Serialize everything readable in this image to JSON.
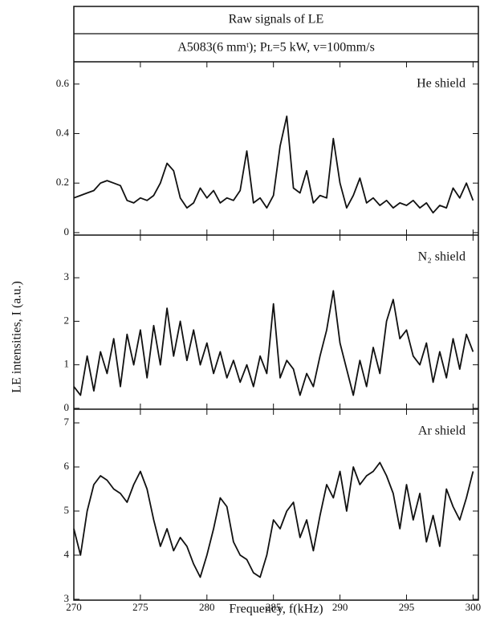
{
  "chart_data": [
    {
      "type": "line",
      "title": "Raw signals of LE",
      "subtitle": "A5083(6 mmᵗ); Pʟ=5 kW,  v=100mm/s",
      "annotation": "He shield",
      "x": [
        270,
        270.5,
        271,
        271.5,
        272,
        272.5,
        273,
        273.5,
        274,
        274.5,
        275,
        275.5,
        276,
        276.5,
        277,
        277.5,
        278,
        278.5,
        279,
        279.5,
        280,
        280.5,
        281,
        281.5,
        282,
        282.5,
        283,
        283.5,
        284,
        284.5,
        285,
        285.5,
        286,
        286.5,
        287,
        287.5,
        288,
        288.5,
        289,
        289.5,
        290,
        290.5,
        291,
        291.5,
        292,
        292.5,
        293,
        293.5,
        294,
        294.5,
        295,
        295.5,
        296,
        296.5,
        297,
        297.5,
        298,
        298.5,
        299,
        299.5,
        300
      ],
      "series": [
        {
          "color": "#111111",
          "values": [
            0.14,
            0.15,
            0.16,
            0.17,
            0.2,
            0.21,
            0.2,
            0.19,
            0.13,
            0.12,
            0.14,
            0.13,
            0.15,
            0.2,
            0.28,
            0.25,
            0.14,
            0.1,
            0.12,
            0.18,
            0.14,
            0.17,
            0.12,
            0.14,
            0.13,
            0.17,
            0.33,
            0.12,
            0.14,
            0.1,
            0.15,
            0.35,
            0.47,
            0.18,
            0.16,
            0.25,
            0.12,
            0.15,
            0.14,
            0.38,
            0.2,
            0.1,
            0.15,
            0.22,
            0.12,
            0.14,
            0.11,
            0.13,
            0.1,
            0.12,
            0.11,
            0.13,
            0.1,
            0.12,
            0.08,
            0.11,
            0.1,
            0.18,
            0.14,
            0.2,
            0.13
          ]
        }
      ],
      "xlim": [
        270,
        300.4
      ],
      "xticks": [
        270,
        275,
        280,
        285,
        290,
        295,
        300
      ],
      "ylim": [
        -0.01,
        0.69
      ],
      "yticks": [
        0,
        0.2,
        0.4,
        0.6
      ]
    },
    {
      "type": "line",
      "annotation": "N₂ shield",
      "y_label": "LE intensities, I (a.u.)",
      "x": [
        270,
        270.5,
        271,
        271.5,
        272,
        272.5,
        273,
        273.5,
        274,
        274.5,
        275,
        275.5,
        276,
        276.5,
        277,
        277.5,
        278,
        278.5,
        279,
        279.5,
        280,
        280.5,
        281,
        281.5,
        282,
        282.5,
        283,
        283.5,
        284,
        284.5,
        285,
        285.5,
        286,
        286.5,
        287,
        287.5,
        288,
        288.5,
        289,
        289.5,
        290,
        290.5,
        291,
        291.5,
        292,
        292.5,
        293,
        293.5,
        294,
        294.5,
        295,
        295.5,
        296,
        296.5,
        297,
        297.5,
        298,
        298.5,
        299,
        299.5,
        300
      ],
      "series": [
        {
          "color": "#111111",
          "values": [
            0.5,
            0.3,
            1.2,
            0.4,
            1.3,
            0.8,
            1.6,
            0.5,
            1.7,
            1.0,
            1.8,
            0.7,
            1.9,
            1.0,
            2.3,
            1.2,
            2.0,
            1.1,
            1.8,
            1.0,
            1.5,
            0.8,
            1.3,
            0.7,
            1.1,
            0.6,
            1.0,
            0.5,
            1.2,
            0.8,
            2.4,
            0.7,
            1.1,
            0.9,
            0.3,
            0.8,
            0.5,
            1.2,
            1.8,
            2.7,
            1.5,
            0.9,
            0.3,
            1.1,
            0.5,
            1.4,
            0.8,
            2.0,
            2.5,
            1.6,
            1.8,
            1.2,
            1.0,
            1.5,
            0.6,
            1.3,
            0.7,
            1.6,
            0.9,
            1.7,
            1.3
          ]
        }
      ],
      "xlim": [
        270,
        300.4
      ],
      "xticks": [
        270,
        275,
        280,
        285,
        290,
        295,
        300
      ],
      "ylim": [
        -0.02,
        3.98
      ],
      "yticks": [
        0,
        1,
        2,
        3
      ]
    },
    {
      "type": "line",
      "annotation": "Ar shield",
      "x_label": "Frequency, f(kHz)",
      "x": [
        270,
        270.5,
        271,
        271.5,
        272,
        272.5,
        273,
        273.5,
        274,
        274.5,
        275,
        275.5,
        276,
        276.5,
        277,
        277.5,
        278,
        278.5,
        279,
        279.5,
        280,
        280.5,
        281,
        281.5,
        282,
        282.5,
        283,
        283.5,
        284,
        284.5,
        285,
        285.5,
        286,
        286.5,
        287,
        287.5,
        288,
        288.5,
        289,
        289.5,
        290,
        290.5,
        291,
        291.5,
        292,
        292.5,
        293,
        293.5,
        294,
        294.5,
        295,
        295.5,
        296,
        296.5,
        297,
        297.5,
        298,
        298.5,
        299,
        299.5,
        300
      ],
      "series": [
        {
          "color": "#111111",
          "values": [
            4.6,
            4.0,
            5.0,
            5.6,
            5.8,
            5.7,
            5.5,
            5.4,
            5.2,
            5.6,
            5.9,
            5.5,
            4.8,
            4.2,
            4.6,
            4.1,
            4.4,
            4.2,
            3.8,
            3.5,
            4.0,
            4.6,
            5.3,
            5.1,
            4.3,
            4.0,
            3.9,
            3.6,
            3.5,
            4.0,
            4.8,
            4.6,
            5.0,
            5.2,
            4.4,
            4.8,
            4.1,
            4.9,
            5.6,
            5.3,
            5.9,
            5.0,
            6.0,
            5.6,
            5.8,
            5.9,
            6.1,
            5.8,
            5.4,
            4.6,
            5.6,
            4.8,
            5.4,
            4.3,
            4.9,
            4.2,
            5.5,
            5.1,
            4.8,
            5.3,
            5.9
          ]
        }
      ],
      "xlim": [
        270,
        300.4
      ],
      "xticks": [
        270,
        275,
        280,
        285,
        290,
        295,
        300
      ],
      "ylim": [
        2.98,
        7.31
      ],
      "yticks": [
        3,
        4,
        5,
        6,
        7
      ],
      "show_xtick_labels": true
    }
  ]
}
